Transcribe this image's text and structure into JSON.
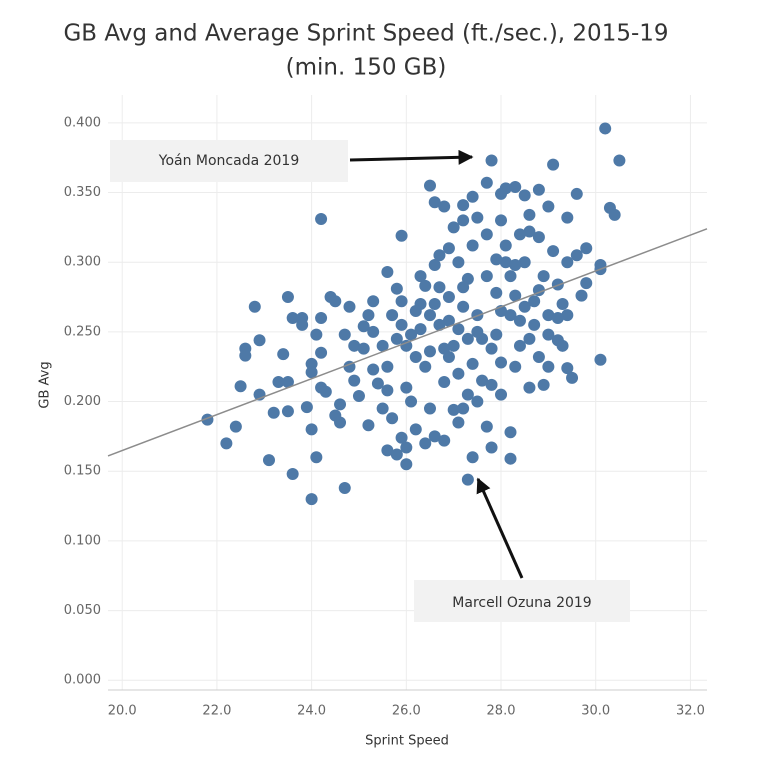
{
  "chart_data": {
    "type": "scatter",
    "title": [
      "GB Avg and Average Sprint Speed (ft./sec.), 2015-19",
      "(min. 150 GB)"
    ],
    "x_label": "Sprint Speed",
    "y_label": "GB Avg",
    "annotations": [
      "Yoán Moncada 2019",
      "Marcell Ozuna 2019"
    ],
    "color": "#4e79a7",
    "grid": true,
    "xlim": [
      19.7,
      32.35
    ],
    "ylim": [
      -0.007,
      0.42
    ],
    "xticks": [
      {
        "value": 20,
        "label": "20.0"
      },
      {
        "value": 22,
        "label": "22.0"
      },
      {
        "value": 24,
        "label": "24.0"
      },
      {
        "value": 26,
        "label": "26.0"
      },
      {
        "value": 28,
        "label": "28.0"
      },
      {
        "value": 30,
        "label": "30.0"
      },
      {
        "value": 32,
        "label": "32.0"
      }
    ],
    "yticks": [
      {
        "value": 0,
        "label": "0.000"
      },
      {
        "value": 0.05,
        "label": "0.050"
      },
      {
        "value": 0.1,
        "label": "0.100"
      },
      {
        "value": 0.15,
        "label": "0.150"
      },
      {
        "value": 0.2,
        "label": "0.200"
      },
      {
        "value": 0.25,
        "label": "0.250"
      },
      {
        "value": 0.3,
        "label": "0.300"
      },
      {
        "value": 0.35,
        "label": "0.350"
      },
      {
        "value": 0.4,
        "label": "0.400"
      }
    ],
    "trendline": {
      "x": [
        19.7,
        32.35
      ],
      "y": [
        0.161,
        0.324
      ],
      "color": "#8c8c8c"
    },
    "x": [
      21.8,
      22.2,
      22.4,
      22.5,
      22.6,
      22.6,
      22.8,
      22.9,
      22.9,
      23.1,
      23.2,
      23.3,
      23.4,
      23.5,
      23.5,
      23.5,
      23.6,
      23.6,
      23.8,
      23.8,
      23.9,
      24.0,
      24.0,
      24.0,
      24.0,
      24.1,
      24.1,
      24.2,
      24.2,
      24.2,
      24.2,
      24.3,
      24.4,
      24.5,
      24.5,
      24.6,
      24.6,
      24.7,
      24.7,
      24.8,
      24.8,
      24.9,
      24.9,
      25.0,
      25.1,
      25.1,
      25.2,
      25.2,
      25.3,
      25.3,
      25.4,
      25.5,
      25.6,
      25.6,
      25.7,
      25.8,
      25.9,
      25.9,
      26.0,
      26.0,
      30.2,
      30.5,
      30.3,
      30.4,
      30.1,
      30.1,
      30.1,
      29.1,
      29.6,
      29.0,
      29.8,
      29.7,
      29.4,
      29.5,
      27.8,
      27.7,
      27.4,
      27.3,
      27.8,
      28.2,
      28.2,
      26.5,
      26.6,
      26.8,
      27.2,
      27.4,
      27.2,
      28.1,
      28.0,
      28.3,
      28.5,
      28.8,
      28.6,
      29.4,
      26.2,
      26.4,
      26.6,
      26.8,
      27.0,
      27.1,
      25.5,
      25.7,
      25.9,
      26.1,
      26.3,
      26.5,
      26.7,
      26.9,
      27.1,
      27.3,
      25.6,
      25.8,
      26.0,
      26.2,
      26.4,
      26.6,
      26.8,
      27.0,
      27.2,
      27.4,
      27.5,
      27.7,
      27.9,
      28.1,
      28.3,
      28.5,
      28.7,
      28.9,
      29.1,
      29.3,
      27.6,
      27.8,
      28.0,
      28.2,
      28.4,
      28.6,
      28.8,
      29.0,
      29.2,
      29.4,
      26.1,
      26.3,
      26.5,
      26.7,
      26.9,
      27.1,
      27.3,
      27.5,
      27.7,
      27.9,
      28.0,
      28.2,
      28.4,
      28.6,
      28.8,
      29.0,
      29.2,
      29.4,
      29.6,
      29.8,
      25.3,
      25.6,
      25.9,
      26.2,
      26.5,
      26.8,
      27.1,
      27.4,
      27.7,
      28.0,
      28.3,
      28.6,
      28.9,
      29.2,
      26.0,
      26.4,
      26.9,
      27.3,
      27.6,
      28.1,
      26.7,
      27.0,
      27.2,
      27.5,
      27.8,
      28.0,
      28.3,
      28.5,
      28.8,
      29.0,
      25.8,
      26.3,
      26.6,
      26.9,
      27.2,
      27.5,
      27.9,
      28.4,
      28.7,
      29.3
    ],
    "y": [
      0.187,
      0.17,
      0.182,
      0.211,
      0.238,
      0.233,
      0.268,
      0.244,
      0.205,
      0.158,
      0.192,
      0.214,
      0.234,
      0.275,
      0.214,
      0.193,
      0.148,
      0.26,
      0.26,
      0.255,
      0.196,
      0.13,
      0.18,
      0.227,
      0.221,
      0.16,
      0.248,
      0.26,
      0.331,
      0.235,
      0.21,
      0.207,
      0.275,
      0.19,
      0.272,
      0.185,
      0.198,
      0.138,
      0.248,
      0.268,
      0.225,
      0.215,
      0.24,
      0.204,
      0.238,
      0.254,
      0.262,
      0.183,
      0.223,
      0.272,
      0.213,
      0.195,
      0.165,
      0.293,
      0.188,
      0.162,
      0.174,
      0.319,
      0.155,
      0.167,
      0.396,
      0.373,
      0.339,
      0.334,
      0.298,
      0.295,
      0.23,
      0.37,
      0.349,
      0.34,
      0.31,
      0.276,
      0.224,
      0.217,
      0.373,
      0.357,
      0.16,
      0.144,
      0.167,
      0.159,
      0.178,
      0.355,
      0.343,
      0.34,
      0.341,
      0.347,
      0.33,
      0.353,
      0.349,
      0.354,
      0.348,
      0.352,
      0.334,
      0.332,
      0.18,
      0.17,
      0.175,
      0.172,
      0.194,
      0.185,
      0.24,
      0.262,
      0.255,
      0.248,
      0.27,
      0.236,
      0.282,
      0.258,
      0.3,
      0.245,
      0.225,
      0.281,
      0.21,
      0.265,
      0.225,
      0.298,
      0.214,
      0.24,
      0.268,
      0.227,
      0.262,
      0.29,
      0.248,
      0.312,
      0.276,
      0.3,
      0.255,
      0.29,
      0.308,
      0.27,
      0.215,
      0.238,
      0.228,
      0.262,
      0.24,
      0.322,
      0.232,
      0.262,
      0.284,
      0.3,
      0.2,
      0.29,
      0.195,
      0.255,
      0.31,
      0.22,
      0.288,
      0.2,
      0.32,
      0.278,
      0.205,
      0.29,
      0.32,
      0.21,
      0.28,
      0.225,
      0.244,
      0.262,
      0.305,
      0.285,
      0.25,
      0.208,
      0.272,
      0.232,
      0.262,
      0.238,
      0.252,
      0.312,
      0.182,
      0.265,
      0.225,
      0.245,
      0.212,
      0.26,
      0.24,
      0.283,
      0.275,
      0.205,
      0.245,
      0.3,
      0.305,
      0.325,
      0.195,
      0.332,
      0.212,
      0.33,
      0.298,
      0.268,
      0.318,
      0.248,
      0.245,
      0.252,
      0.27,
      0.232,
      0.282,
      0.25,
      0.302,
      0.258,
      0.272,
      0.24
    ]
  }
}
